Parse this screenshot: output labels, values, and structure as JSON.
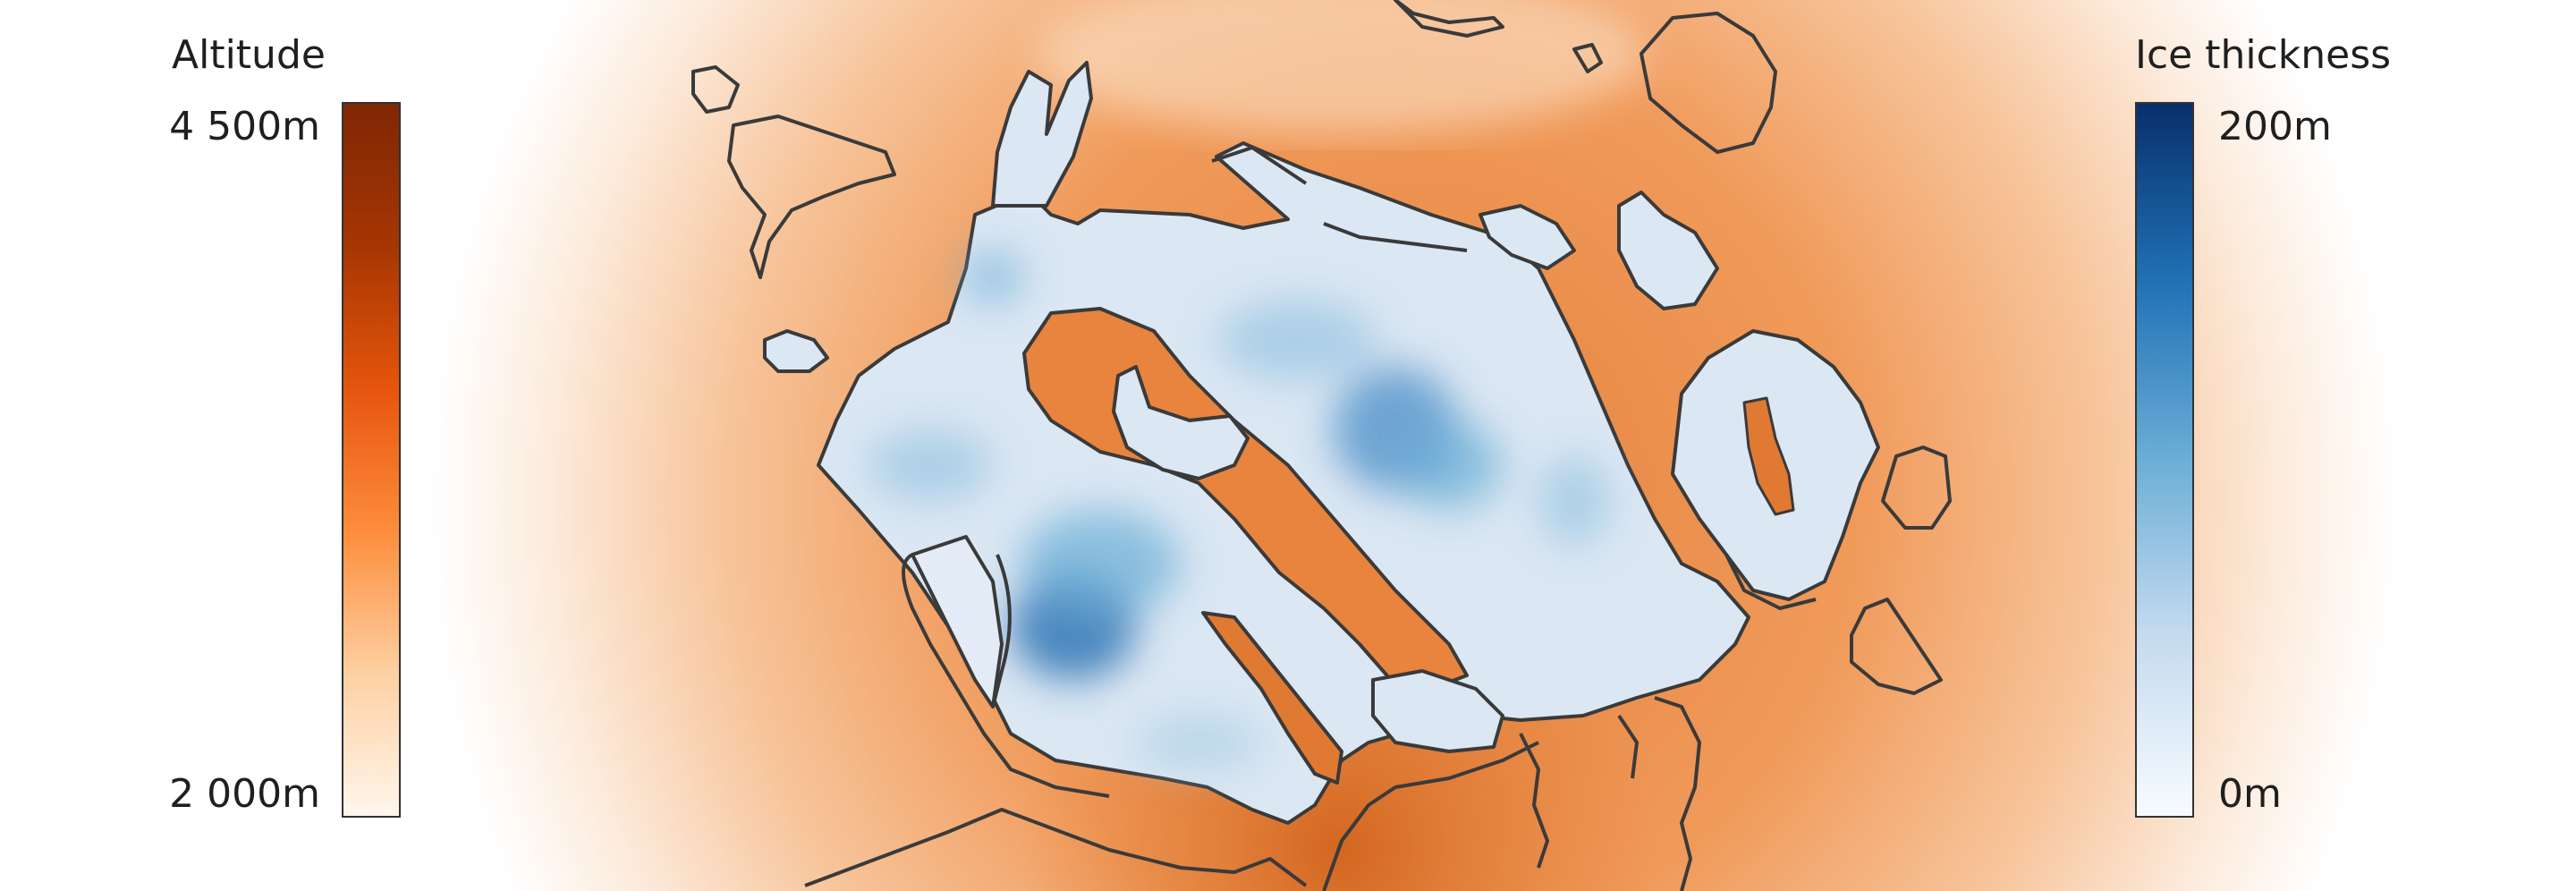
{
  "legends": {
    "altitude": {
      "title": "Altitude",
      "max_label": "4 500m",
      "min_label": "2 000m",
      "colors": [
        "#fff6ec",
        "#fdd0a2",
        "#fd8d3c",
        "#e6550d",
        "#a63603",
        "#7f2704"
      ]
    },
    "ice_thickness": {
      "title": "Ice thickness",
      "max_label": "200m",
      "min_label": "0m",
      "colors": [
        "#f7fbff",
        "#c6dbef",
        "#6baed6",
        "#2171b5",
        "#08306b"
      ]
    }
  }
}
